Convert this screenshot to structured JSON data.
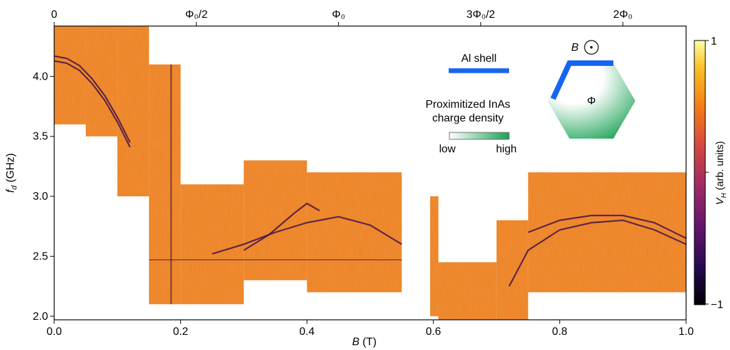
{
  "chart_data": {
    "type": "heatmap",
    "xlabel_var": "B",
    "xlabel_unit": "(T)",
    "ylabel_var": "f",
    "ylabel_sub": "d",
    "ylabel_unit": "(GHz)",
    "xlim": [
      0.0,
      1.0
    ],
    "ylim": [
      1.97,
      4.42
    ],
    "x_ticks": [
      {
        "value": 0.0,
        "label": "0.0"
      },
      {
        "value": 0.2,
        "label": "0.2"
      },
      {
        "value": 0.4,
        "label": "0.4"
      },
      {
        "value": 0.6,
        "label": "0.6"
      },
      {
        "value": 0.8,
        "label": "0.8"
      },
      {
        "value": 1.0,
        "label": "1.0"
      }
    ],
    "y_ticks": [
      {
        "value": 2.0,
        "label": "2.0"
      },
      {
        "value": 2.5,
        "label": "2.5"
      },
      {
        "value": 3.0,
        "label": "3.0"
      },
      {
        "value": 3.5,
        "label": "3.5"
      },
      {
        "value": 4.0,
        "label": "4.0"
      }
    ],
    "top_axis_ticks": [
      {
        "value": 0.0,
        "label": "0"
      },
      {
        "value": 0.225,
        "label": "Φ₀/2"
      },
      {
        "value": 0.45,
        "label": "Φ₀"
      },
      {
        "value": 0.675,
        "label": "3Φ₀/2"
      },
      {
        "value": 0.9,
        "label": "2Φ₀"
      }
    ],
    "colorbar": {
      "label_var": "V",
      "label_sub": "H",
      "label_unit": "(arb. units)",
      "range": [
        -1,
        1
      ],
      "ticks": [
        {
          "value": 1,
          "label": "1"
        },
        {
          "value": -1,
          "label": "−1"
        }
      ],
      "colormap": "inferno"
    },
    "measurement_windows": [
      {
        "x": [
          0.0,
          0.05
        ],
        "y": [
          3.6,
          4.42
        ]
      },
      {
        "x": [
          0.05,
          0.1
        ],
        "y": [
          3.5,
          4.42
        ]
      },
      {
        "x": [
          0.1,
          0.15
        ],
        "y": [
          3.0,
          4.42
        ]
      },
      {
        "x": [
          0.15,
          0.2
        ],
        "y": [
          2.1,
          4.1
        ]
      },
      {
        "x": [
          0.2,
          0.3
        ],
        "y": [
          2.1,
          3.1
        ]
      },
      {
        "x": [
          0.3,
          0.4
        ],
        "y": [
          2.3,
          3.3
        ]
      },
      {
        "x": [
          0.4,
          0.55
        ],
        "y": [
          2.2,
          3.2
        ]
      },
      {
        "x": [
          0.595,
          0.608
        ],
        "y": [
          2.0,
          3.0
        ]
      },
      {
        "x": [
          0.608,
          0.7
        ],
        "y": [
          1.97,
          2.45
        ]
      },
      {
        "x": [
          0.7,
          0.75
        ],
        "y": [
          1.97,
          2.8
        ]
      },
      {
        "x": [
          0.75,
          1.0
        ],
        "y": [
          2.2,
          3.2
        ]
      }
    ],
    "features": [
      {
        "name": "arc-1",
        "x": [
          0.0,
          0.02,
          0.04,
          0.06,
          0.08,
          0.1,
          0.12
        ],
        "y": [
          4.17,
          4.15,
          4.09,
          3.98,
          3.84,
          3.66,
          3.45
        ]
      },
      {
        "name": "arc-2",
        "x": [
          0.0,
          0.02,
          0.04,
          0.06,
          0.08,
          0.1,
          0.12
        ],
        "y": [
          4.13,
          4.11,
          4.05,
          3.94,
          3.8,
          3.62,
          3.41
        ]
      },
      {
        "name": "resonance-lower",
        "x": [
          0.25,
          0.3,
          0.35,
          0.4,
          0.45,
          0.5,
          0.55
        ],
        "y": [
          2.52,
          2.6,
          2.7,
          2.78,
          2.83,
          2.76,
          2.6
        ]
      },
      {
        "name": "resonance-upper",
        "x": [
          0.3,
          0.34,
          0.38,
          0.4,
          0.42
        ],
        "y": [
          2.55,
          2.68,
          2.86,
          2.94,
          2.88
        ]
      },
      {
        "name": "resonance-right",
        "x": [
          0.72,
          0.75,
          0.8,
          0.85,
          0.9,
          0.95,
          1.0
        ],
        "y": [
          2.25,
          2.55,
          2.72,
          2.78,
          2.8,
          2.72,
          2.6
        ]
      },
      {
        "name": "resonance-right-2",
        "x": [
          0.75,
          0.8,
          0.85,
          0.9,
          0.95,
          1.0
        ],
        "y": [
          2.7,
          2.8,
          2.84,
          2.84,
          2.78,
          2.65
        ]
      }
    ],
    "hline": {
      "y": 2.47,
      "x": [
        0.15,
        0.55
      ]
    },
    "vline": {
      "x": 0.185,
      "y": [
        2.1,
        4.1
      ]
    }
  },
  "legend": {
    "al_shell_label": "Al shell",
    "density_label_line1": "Proximitized InAs",
    "density_label_line2": "charge density",
    "density_low": "low",
    "density_high": "high",
    "inset_field_label": "B",
    "inset_flux_label": "Φ"
  },
  "colors": {
    "al_shell": "#1565f0",
    "inas_high": "#1aa255",
    "heat_base": "#ee8428"
  }
}
